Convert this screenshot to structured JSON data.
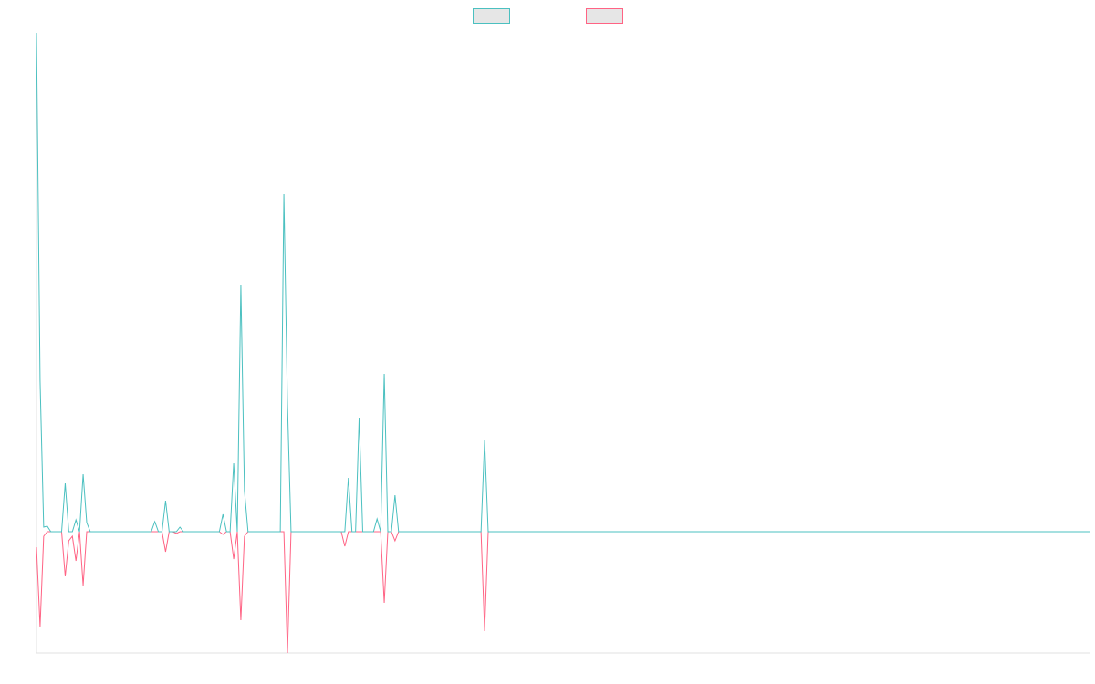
{
  "chart_data": {
    "type": "line",
    "ylim": [
      -133,
      547
    ],
    "legend": "top",
    "series": [
      {
        "color": "#4bc0c0",
        "values": [
          547,
          165,
          5,
          6,
          0,
          0,
          0,
          0,
          53,
          0,
          0,
          13,
          0,
          63,
          10,
          0,
          0,
          0,
          0,
          0,
          0,
          0,
          0,
          0,
          0,
          0,
          0,
          0,
          0,
          0,
          0,
          0,
          0,
          11,
          0,
          0,
          34,
          0,
          0,
          0,
          5,
          0,
          0,
          0,
          0,
          0,
          0,
          0,
          0,
          0,
          0,
          0,
          19,
          0,
          0,
          75,
          0,
          270,
          45,
          0,
          0,
          0,
          0,
          0,
          0,
          0,
          0,
          0,
          0,
          370,
          140,
          0,
          0,
          0,
          0,
          0,
          0,
          0,
          0,
          0,
          0,
          0,
          0,
          0,
          0,
          0,
          0,
          59,
          0,
          0,
          125,
          0,
          0,
          0,
          0,
          14,
          0,
          173,
          0,
          0,
          40,
          0,
          0,
          0,
          0,
          0,
          0,
          0,
          0,
          0,
          0,
          0,
          0,
          0,
          0,
          0,
          0,
          0,
          0,
          0,
          0,
          0,
          0,
          0,
          0,
          100,
          0,
          0,
          0,
          0,
          0,
          0,
          0,
          0,
          0,
          0,
          0,
          0,
          0,
          0,
          0,
          0,
          0,
          0,
          0,
          0,
          0,
          0,
          0,
          0,
          0,
          0,
          0,
          0,
          0,
          0,
          0,
          0,
          0,
          0,
          0,
          0,
          0,
          0,
          0,
          0,
          0,
          0,
          0,
          0,
          0,
          0,
          0,
          0,
          0,
          0,
          0,
          0,
          0,
          0,
          0,
          0,
          0,
          0,
          0,
          0,
          0,
          0,
          0,
          0,
          0,
          0,
          0,
          0,
          0,
          0,
          0,
          0,
          0,
          0,
          0,
          0,
          0,
          0,
          0,
          0,
          0,
          0,
          0,
          0,
          0,
          0,
          0,
          0,
          0,
          0,
          0,
          0,
          0,
          0,
          0,
          0,
          0,
          0,
          0,
          0,
          0,
          0,
          0,
          0,
          0,
          0,
          0,
          0,
          0,
          0,
          0,
          0,
          0,
          0,
          0,
          0,
          0,
          0,
          0,
          0,
          0,
          0,
          0,
          0,
          0,
          0,
          0,
          0,
          0,
          0,
          0,
          0,
          0,
          0,
          0,
          0,
          0,
          0,
          0,
          0,
          0,
          0,
          0,
          0,
          0,
          0,
          0,
          0,
          0,
          0,
          0,
          0,
          0,
          0,
          0,
          0,
          0,
          0,
          0,
          0,
          0,
          0,
          0,
          0,
          0,
          0,
          0,
          0,
          0
        ]
      },
      {
        "color": "#ff6384",
        "values": [
          -17,
          -104,
          -5,
          0,
          0,
          0,
          0,
          0,
          -49,
          -10,
          -5,
          -32,
          0,
          -59,
          0,
          0,
          0,
          0,
          0,
          0,
          0,
          0,
          0,
          0,
          0,
          0,
          0,
          0,
          0,
          0,
          0,
          0,
          0,
          0,
          0,
          0,
          -22,
          0,
          0,
          -2,
          0,
          0,
          0,
          0,
          0,
          0,
          0,
          0,
          0,
          0,
          0,
          0,
          -3,
          0,
          0,
          -30,
          0,
          -97,
          -5,
          0,
          0,
          0,
          0,
          0,
          0,
          0,
          0,
          0,
          0,
          0,
          -133,
          0,
          0,
          0,
          0,
          0,
          0,
          0,
          0,
          0,
          0,
          0,
          0,
          0,
          0,
          0,
          -16,
          0,
          0,
          0,
          0,
          0,
          0,
          0,
          0,
          0,
          0,
          -78,
          0,
          0,
          -10,
          0,
          0,
          0,
          0,
          0,
          0,
          0,
          0,
          0,
          0,
          0,
          0,
          0,
          0,
          0,
          0,
          0,
          0,
          0,
          0,
          0,
          0,
          0,
          0,
          -109,
          0,
          0,
          0,
          0,
          0,
          0,
          0,
          0,
          0,
          0,
          0,
          0,
          0,
          0,
          0,
          0,
          0,
          0,
          0,
          0,
          0,
          0,
          0,
          0,
          0,
          0,
          0,
          0,
          0,
          0,
          0,
          0,
          0,
          0,
          0,
          0,
          0,
          0,
          0,
          0,
          0,
          0,
          0,
          0,
          0,
          0,
          0,
          0,
          0,
          0,
          0,
          0,
          0,
          0,
          0,
          0,
          0,
          0,
          0,
          0,
          0,
          0,
          0,
          0,
          0,
          0,
          0,
          0,
          0,
          0,
          0,
          0,
          0,
          0,
          0,
          0,
          0,
          0,
          0,
          0,
          0,
          0,
          0,
          0,
          0,
          0,
          0,
          0,
          0,
          0,
          0,
          0,
          0,
          0,
          0,
          0,
          0,
          0,
          0,
          0,
          0,
          0,
          0,
          0,
          0,
          0,
          0,
          0,
          0,
          0,
          0,
          0,
          0,
          0,
          0,
          0,
          0,
          0,
          0,
          0,
          0,
          0,
          0,
          0,
          0,
          0,
          0,
          0,
          0,
          0,
          0,
          0,
          0,
          0,
          0,
          0,
          0,
          0,
          0,
          0,
          0,
          0,
          0,
          0,
          0,
          0,
          0,
          0,
          0,
          0,
          0,
          0,
          0,
          0,
          0,
          0,
          0,
          0,
          0,
          0,
          0,
          0,
          0,
          0,
          0,
          0,
          0,
          0,
          0
        ]
      }
    ]
  }
}
